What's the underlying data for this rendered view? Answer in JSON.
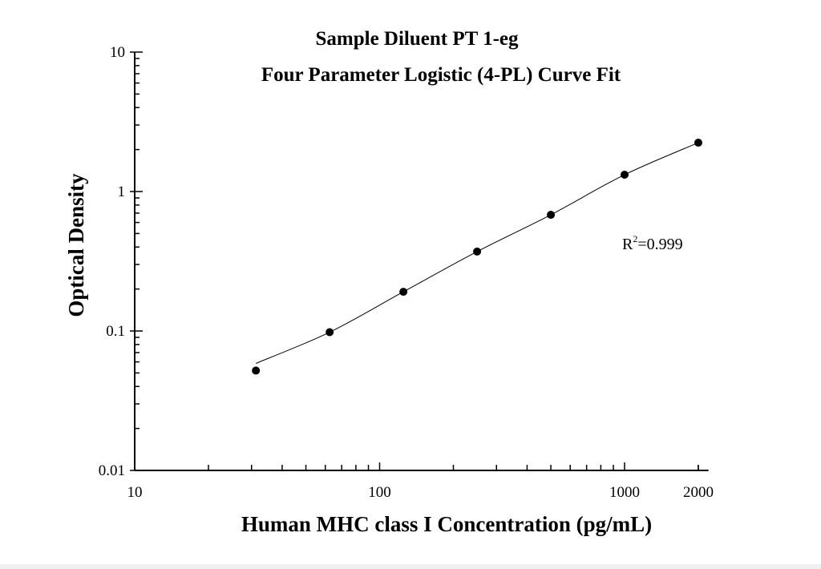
{
  "chart_data": {
    "type": "scatter",
    "title": "Sample Diluent PT 1-eg",
    "subtitle": "Four Parameter Logistic (4-PL) Curve Fit",
    "xlabel": "Human MHC class I Concentration (pg/mL)",
    "ylabel": "Optical Density",
    "x_scale": "log",
    "y_scale": "log",
    "xlim": [
      10,
      2200
    ],
    "ylim": [
      0.01,
      10
    ],
    "x_ticks": [
      "10",
      "100",
      "1000",
      "2000"
    ],
    "y_ticks": [
      "0.01",
      "0.1",
      "1",
      "10"
    ],
    "grid": false,
    "annotation": {
      "text_main": "R",
      "superscript": "2",
      "text_value": "=0.999"
    },
    "series": [
      {
        "x": [
          31.25,
          62.5,
          125,
          250,
          500,
          1000,
          2000
        ],
        "y": [
          0.052,
          0.098,
          0.191,
          0.371,
          0.681,
          1.32,
          2.24
        ],
        "fit": "4-PL"
      }
    ],
    "marker_color": "#000000",
    "line_color": "#000000"
  }
}
